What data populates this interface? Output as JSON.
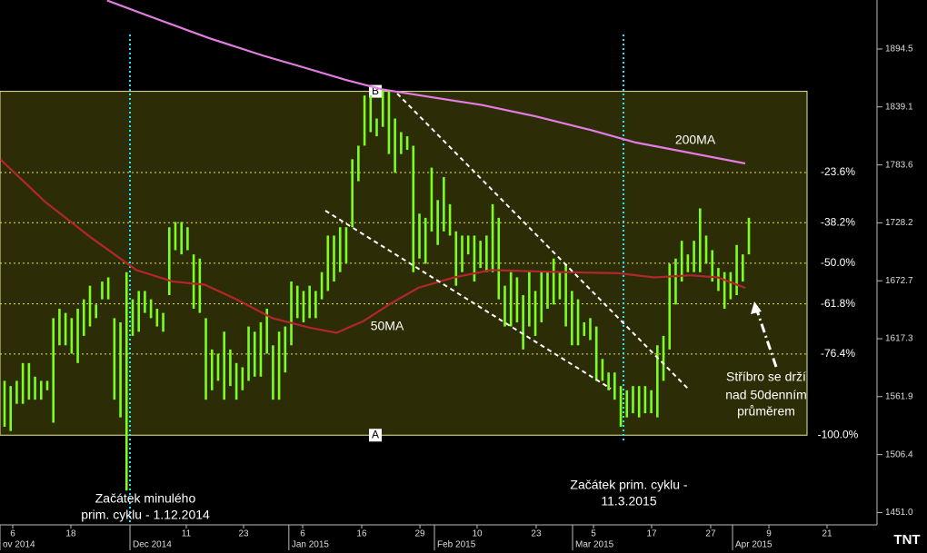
{
  "chart_data": {
    "type": "ohlc",
    "bar_color": "#7cff1e",
    "high": [
      1577,
      1572,
      1577,
      1594,
      1594,
      1581,
      1577,
      1577,
      1637,
      1646,
      1642,
      1637,
      1646,
      1655,
      1668,
      1650,
      1672,
      1676,
      1637,
      1633,
      1681,
      1655,
      1663,
      1663,
      1655,
      1646,
      1642,
      1724,
      1729,
      1729,
      1724,
      1698,
      1694,
      1637,
      1607,
      1603,
      1624,
      1607,
      1594,
      1590,
      1629,
      1624,
      1633,
      1646,
      1611,
      1624,
      1629,
      1672,
      1668,
      1663,
      1668,
      1663,
      1681,
      1716,
      1716,
      1724,
      1724,
      1789,
      1802,
      1850,
      1850,
      1828,
      1855,
      1855,
      1828,
      1815,
      1811,
      1802,
      1737,
      1733,
      1781,
      1750,
      1772,
      1746,
      1720,
      1716,
      1716,
      1716,
      1711,
      1716,
      1746,
      1733,
      1668,
      1681,
      1676,
      1659,
      1681,
      1663,
      1681,
      1681,
      1694,
      1681,
      1689,
      1663,
      1655,
      1633,
      1637,
      1629,
      1598,
      1585,
      1585,
      1572,
      1568,
      1572,
      1572,
      1572,
      1568,
      1611,
      1620,
      1689,
      1694,
      1711,
      1698,
      1711,
      1742,
      1716,
      1702,
      1685,
      1681,
      1681,
      1707,
      1698,
      1733
    ],
    "low": [
      1533,
      1529,
      1555,
      1555,
      1559,
      1559,
      1559,
      1568,
      1537,
      1611,
      1611,
      1603,
      1594,
      1620,
      1629,
      1637,
      1655,
      1655,
      1559,
      1542,
      1472,
      1620,
      1624,
      1642,
      1637,
      1629,
      1624,
      1659,
      1702,
      1698,
      1702,
      1646,
      1642,
      1559,
      1568,
      1577,
      1559,
      1572,
      1559,
      1568,
      1577,
      1581,
      1581,
      1603,
      1559,
      1559,
      1585,
      1611,
      1637,
      1633,
      1637,
      1637,
      1655,
      1663,
      1672,
      1681,
      1689,
      1724,
      1768,
      1802,
      1815,
      1811,
      1820,
      1794,
      1776,
      1794,
      1798,
      1681,
      1694,
      1689,
      1720,
      1707,
      1720,
      1716,
      1668,
      1681,
      1698,
      1672,
      1685,
      1681,
      1681,
      1655,
      1629,
      1629,
      1633,
      1607,
      1629,
      1620,
      1633,
      1646,
      1650,
      1655,
      1629,
      1611,
      1611,
      1620,
      1616,
      1577,
      1577,
      1568,
      1559,
      1533,
      1542,
      1546,
      1542,
      1546,
      1546,
      1542,
      1577,
      1607,
      1650,
      1672,
      1681,
      1681,
      1681,
      1689,
      1672,
      1663,
      1646,
      1655,
      1659,
      1672,
      1698
    ],
    "ylim": [
      1439.2,
      1941.4
    ],
    "yticks": [
      {
        "value": 1451,
        "label": "1451.0"
      },
      1506.4,
      1561.9,
      1617.3,
      1672.7,
      1728.2,
      1783.6,
      1839.1,
      1894.5
    ],
    "xlim": [
      -0.745,
      143
    ],
    "xticks": [
      {
        "value": 1.34,
        "label": "6"
      },
      {
        "value": 10.87,
        "label": "18"
      },
      {
        "value": 29.79,
        "label": "11"
      },
      {
        "value": 39.18,
        "label": "23"
      },
      {
        "value": 48.86,
        "label": "6"
      },
      {
        "value": 58.54,
        "label": "16"
      },
      {
        "value": 68.08,
        "label": "29"
      },
      {
        "value": 77.46,
        "label": "10"
      },
      {
        "value": 87.14,
        "label": "23"
      },
      {
        "value": 96.53,
        "label": "5"
      },
      {
        "value": 106.06,
        "label": "17"
      },
      {
        "value": 115.74,
        "label": "27"
      },
      {
        "value": 125.28,
        "label": "9"
      },
      {
        "value": 134.81,
        "label": "21"
      }
    ],
    "month_ticks": [
      {
        "value": -0.745,
        "label": "ov 2014"
      },
      {
        "value": 20.56,
        "label": "Dec 2014"
      },
      {
        "value": 46.6,
        "label": "Jan 2015"
      },
      {
        "value": 70.46,
        "label": "Feb 2015"
      },
      {
        "value": 93.1,
        "label": "Mar 2015"
      },
      {
        "value": 119.32,
        "label": "Apr 2015"
      }
    ],
    "series": [
      {
        "name": "200MA",
        "color": "#e47ce4",
        "x": [
          16.8,
          24.6,
          33.5,
          42.5,
          48.4,
          55.9,
          61.8,
          69.3,
          78.2,
          87.1,
          96.1,
          103.5,
          112.5,
          121.4
        ],
        "values": [
          1941,
          1924,
          1905,
          1888,
          1878,
          1865,
          1856,
          1849,
          1841,
          1830,
          1817,
          1805,
          1795,
          1785
        ]
      },
      {
        "name": "50MA",
        "color": "#b3262a",
        "x": [
          -0.7,
          6.7,
          14.2,
          21.6,
          27.6,
          32.8,
          38,
          43.9,
          49.9,
          54.4,
          58.8,
          63.3,
          67.8,
          73.7,
          79.7,
          85.7,
          91.6,
          100.6,
          106.5,
          112.5,
          116.9,
          121.4
        ],
        "values": [
          1789,
          1748,
          1714,
          1683,
          1672,
          1669,
          1655,
          1637,
          1628,
          1623,
          1634,
          1651,
          1666,
          1676,
          1683,
          1682,
          1681,
          1680,
          1676,
          1678,
          1676,
          1666
        ]
      }
    ],
    "fib": {
      "high": 1854,
      "low": 1525,
      "high_label": "B",
      "low_label": "A",
      "levels": [
        -23.6,
        -38.2,
        -50,
        -61.8,
        -76.4,
        -100
      ],
      "level_labels": [
        "-23.6%",
        "-38.2%",
        "-50.0%",
        "-61.8%",
        "-76.4%",
        "-100.0%"
      ]
    },
    "annotations": [
      {
        "lines": [
          "Začátek minulého",
          "prim. cyklu - 1.12.2014"
        ]
      },
      {
        "lines": [
          "Začátek prim. cyklu -",
          "11.3.2015"
        ]
      },
      {
        "lines": [
          "Stříbro se drží",
          "nad 50denním",
          "průměrem"
        ]
      }
    ],
    "logo": "TNT"
  }
}
